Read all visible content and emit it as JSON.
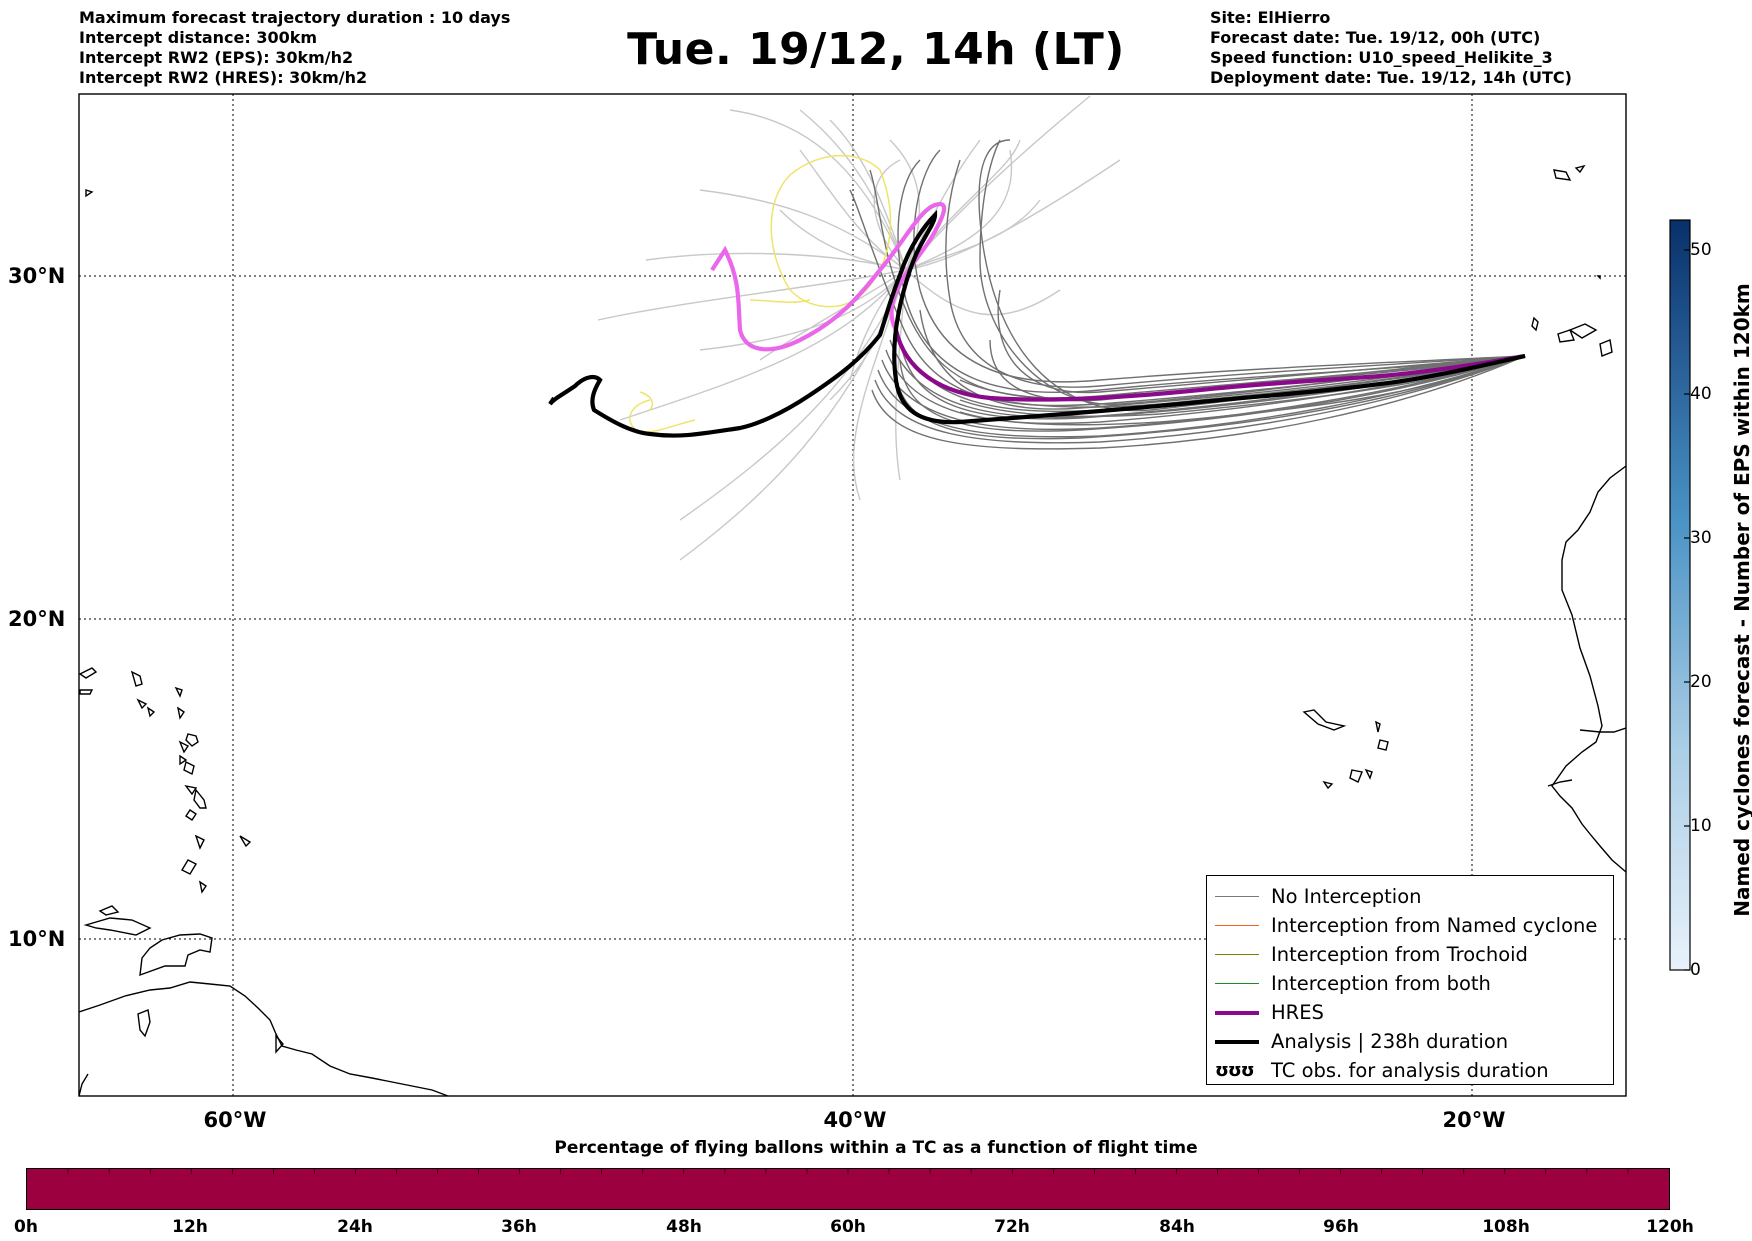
{
  "title": "Tue. 19/12, 14h (LT)",
  "info_left": [
    "Maximum forecast trajectory duration : 10 days",
    "Intercept distance: 300km",
    "Intercept RW2 (EPS):  30km/h2",
    "Intercept RW2 (HRES): 30km/h2"
  ],
  "info_right": [
    "Site: ElHierro",
    "Forecast date: Tue. 19/12, 00h (UTC)",
    "Speed function: U10_speed_Helikite_3",
    "Deployment date: Tue. 19/12, 14h (UTC)"
  ],
  "map": {
    "lon_range": [
      -65,
      -15
    ],
    "lat_range": [
      5,
      34.3
    ],
    "lat_ticks": [
      {
        "value": 30,
        "label": "30°N"
      },
      {
        "value": 20,
        "label": "20°N"
      },
      {
        "value": 10,
        "label": "10°N"
      }
    ],
    "lon_ticks": [
      {
        "value": -60,
        "label": "60°W"
      },
      {
        "value": -40,
        "label": "40°W"
      },
      {
        "value": -20,
        "label": "20°W"
      }
    ],
    "gridlines": "dotted"
  },
  "legend": {
    "entries": [
      {
        "label": "No Interception",
        "color": "#7a7a7a"
      },
      {
        "label": "Interception from Named cyclone",
        "color": "#f26522"
      },
      {
        "label": "Interception from Trochoid",
        "color": "#808000"
      },
      {
        "label": "Interception from both",
        "color": "#1f8a1f"
      },
      {
        "label": "HRES",
        "color": "#8b0a8b"
      },
      {
        "label": "Analysis | 238h duration",
        "color": "#000000"
      },
      {
        "label": "TC obs. for analysis duration",
        "glyph": "ʊʊʊ"
      }
    ]
  },
  "colorbar": {
    "label": "Named cyclones forecast - Number of EPS within 120km",
    "min": 0,
    "max": 52,
    "ticks": [
      "0",
      "10",
      "20",
      "30",
      "40",
      "50"
    ],
    "color_low": "#e6f0fa",
    "color_high": "#08306b"
  },
  "percentage_bar": {
    "title": "Percentage of flying ballons within a TC as a function of flight time",
    "ticks": [
      "0h",
      "12h",
      "24h",
      "36h",
      "48h",
      "60h",
      "72h",
      "84h",
      "96h",
      "108h",
      "120h"
    ],
    "value_percent": 0,
    "color": "#9d003f"
  }
}
